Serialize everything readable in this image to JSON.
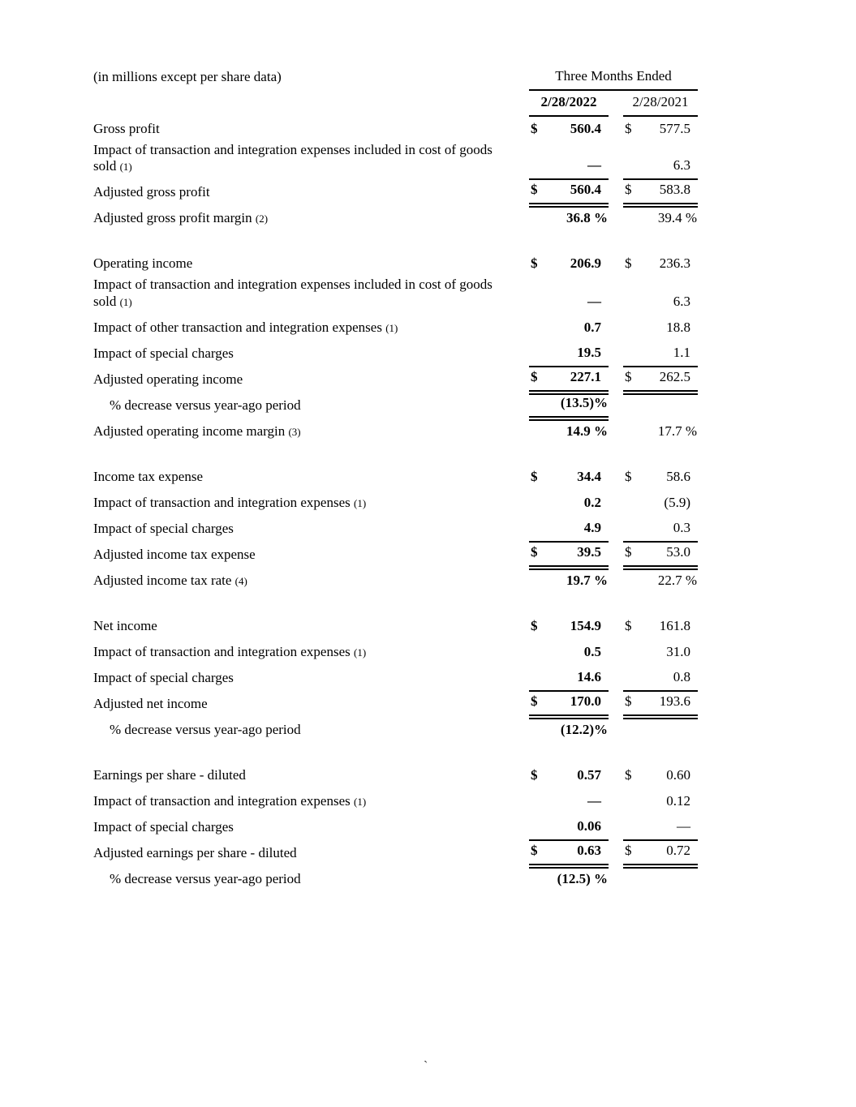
{
  "header": {
    "units_label": "(in millions except per share data)",
    "period_label": "Three Months Ended",
    "col_2022": "2/28/2022",
    "col_2021": "2/28/2021"
  },
  "footer": {
    "stray_char": "`"
  },
  "table": {
    "sections": [
      {
        "name": "gross-profit",
        "rows": [
          {
            "label": "Gross profit",
            "a": {
              "cur": "$",
              "v": "560.4"
            },
            "b": {
              "cur": "$",
              "v": "577.5"
            }
          },
          {
            "label": "Impact of transaction and integration expenses included in cost of goods sold",
            "note": "(1)",
            "a": {
              "v": "—",
              "u": "1"
            },
            "b": {
              "v": "6.3",
              "u": "1"
            }
          },
          {
            "label": "Adjusted gross profit",
            "a": {
              "cur": "$",
              "v": "560.4",
              "u": "2"
            },
            "b": {
              "cur": "$",
              "v": "583.8",
              "u": "2"
            }
          },
          {
            "label": "Adjusted gross profit margin",
            "note": "(2)",
            "a": {
              "v": "36.8 %",
              "flush": true
            },
            "b": {
              "v": "39.4 %",
              "flush": true
            }
          }
        ]
      },
      {
        "name": "operating-income",
        "rows": [
          {
            "label": "Operating income",
            "a": {
              "cur": "$",
              "v": "206.9"
            },
            "b": {
              "cur": "$",
              "v": "236.3"
            }
          },
          {
            "label": "Impact of transaction and integration expenses included in cost of goods sold",
            "note": "(1)",
            "a": {
              "v": "—"
            },
            "b": {
              "v": "6.3"
            }
          },
          {
            "label": "Impact of other transaction and integration expenses",
            "note": "(1)",
            "a": {
              "v": "0.7"
            },
            "b": {
              "v": "18.8"
            }
          },
          {
            "label": "Impact of special charges",
            "a": {
              "v": "19.5",
              "u": "1"
            },
            "b": {
              "v": "1.1",
              "u": "1"
            }
          },
          {
            "label": "Adjusted operating income",
            "a": {
              "cur": "$",
              "v": "227.1",
              "u": "2"
            },
            "b": {
              "cur": "$",
              "v": "262.5",
              "u": "2"
            }
          },
          {
            "label": "% decrease versus year-ago period",
            "indent": true,
            "a": {
              "v": "(13.5)%",
              "flush": true,
              "u": "2"
            },
            "b": {
              "v": ""
            }
          },
          {
            "label": "Adjusted operating income margin",
            "note": "(3)",
            "a": {
              "v": "14.9 %",
              "flush": true
            },
            "b": {
              "v": "17.7 %",
              "flush": true
            }
          }
        ]
      },
      {
        "name": "income-tax",
        "rows": [
          {
            "label": "Income tax expense",
            "a": {
              "cur": "$",
              "v": "34.4"
            },
            "b": {
              "cur": "$",
              "v": "58.6"
            }
          },
          {
            "label": "Impact of transaction and integration expenses",
            "note": "(1)",
            "a": {
              "v": "0.2"
            },
            "b": {
              "v": "(5.9)"
            }
          },
          {
            "label": "Impact of special charges",
            "a": {
              "v": "4.9",
              "u": "1"
            },
            "b": {
              "v": "0.3",
              "u": "1"
            }
          },
          {
            "label": "Adjusted income tax expense",
            "a": {
              "cur": "$",
              "v": "39.5",
              "u": "2"
            },
            "b": {
              "cur": "$",
              "v": "53.0",
              "u": "2"
            }
          },
          {
            "label": "Adjusted income tax rate",
            "note": "(4)",
            "a": {
              "v": "19.7 %",
              "flush": true
            },
            "b": {
              "v": "22.7 %",
              "flush": true
            }
          }
        ]
      },
      {
        "name": "net-income",
        "rows": [
          {
            "label": "Net income",
            "a": {
              "cur": "$",
              "v": "154.9"
            },
            "b": {
              "cur": "$",
              "v": "161.8"
            }
          },
          {
            "label": "Impact of transaction and integration expenses",
            "note": "(1)",
            "a": {
              "v": "0.5"
            },
            "b": {
              "v": "31.0"
            }
          },
          {
            "label": "Impact of special charges",
            "a": {
              "v": "14.6",
              "u": "1"
            },
            "b": {
              "v": "0.8",
              "u": "1"
            }
          },
          {
            "label": "Adjusted net income",
            "a": {
              "cur": "$",
              "v": "170.0",
              "u": "2"
            },
            "b": {
              "cur": "$",
              "v": "193.6",
              "u": "2"
            }
          },
          {
            "label": "% decrease versus year-ago period",
            "indent": true,
            "a": {
              "v": "(12.2)%",
              "flush": true
            },
            "b": {
              "v": ""
            }
          }
        ]
      },
      {
        "name": "eps",
        "rows": [
          {
            "label": "Earnings per share - diluted",
            "a": {
              "cur": "$",
              "v": "0.57"
            },
            "b": {
              "cur": "$",
              "v": "0.60"
            }
          },
          {
            "label": "Impact of transaction and integration expenses",
            "note": "(1)",
            "a": {
              "v": "—"
            },
            "b": {
              "v": "0.12"
            }
          },
          {
            "label": "Impact of special charges",
            "a": {
              "v": "0.06",
              "u": "1"
            },
            "b": {
              "v": "—",
              "u": "1"
            }
          },
          {
            "label": "Adjusted earnings per share - diluted",
            "a": {
              "cur": "$",
              "v": "0.63",
              "u": "2"
            },
            "b": {
              "cur": "$",
              "v": "0.72",
              "u": "2"
            }
          },
          {
            "label": "% decrease versus year-ago period",
            "indent": true,
            "a": {
              "v": "(12.5) %",
              "flush": true
            },
            "b": {
              "v": ""
            }
          }
        ]
      }
    ]
  }
}
